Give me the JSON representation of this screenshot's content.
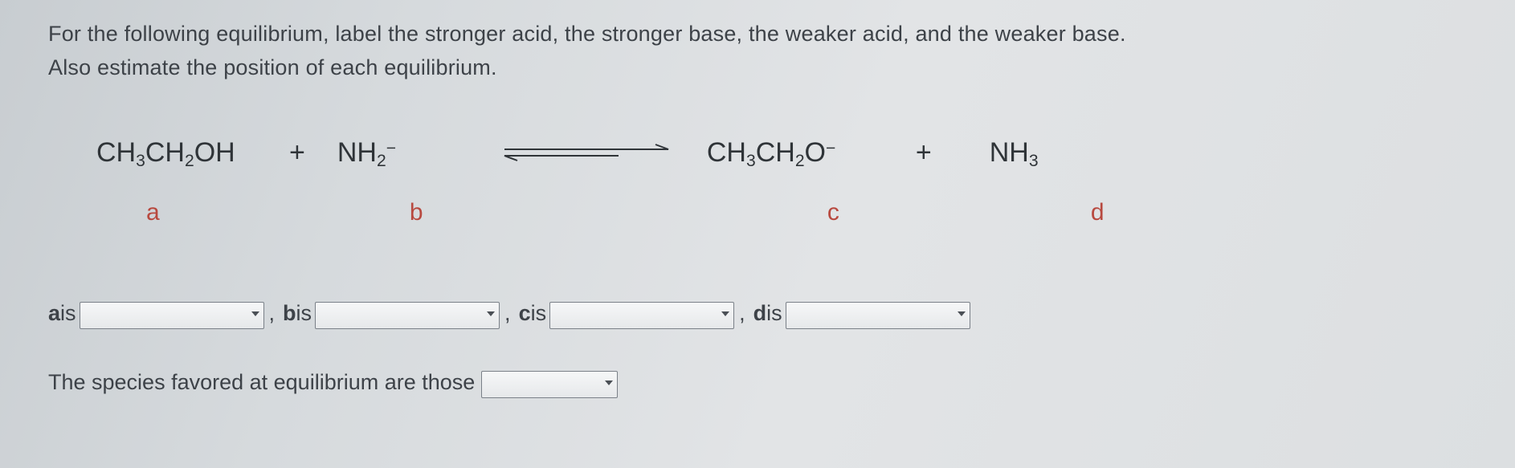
{
  "question": {
    "line1": "For the following equilibrium, label the stronger acid, the stronger base, the weaker acid, and the weaker base.",
    "line2": "Also estimate the position of each equilibrium."
  },
  "equation": {
    "a": {
      "formula_html": "CH<sub>3</sub>CH<sub>2</sub>OH",
      "label": "a"
    },
    "plus1": "+",
    "b": {
      "formula_html": "NH<sub>2</sub><sup>−</sup>",
      "label": "b"
    },
    "arrow_color": "#2f3438",
    "c": {
      "formula_html": "CH<sub>3</sub>CH<sub>2</sub>O<sup>−</sup>",
      "label": "c"
    },
    "plus2": "+",
    "d": {
      "formula_html": "NH<sub>3</sub>",
      "label": "d"
    }
  },
  "answers": {
    "a_prefix": "a",
    "is": " is ",
    "b_prefix": "b",
    "c_prefix": "c",
    "d_prefix": "d",
    "comma": ", ",
    "a_value": "",
    "b_value": "",
    "c_value": "",
    "d_value": ""
  },
  "final": {
    "text": "The species favored at equilibrium are those",
    "value": ""
  },
  "label_color": "#b8493f"
}
